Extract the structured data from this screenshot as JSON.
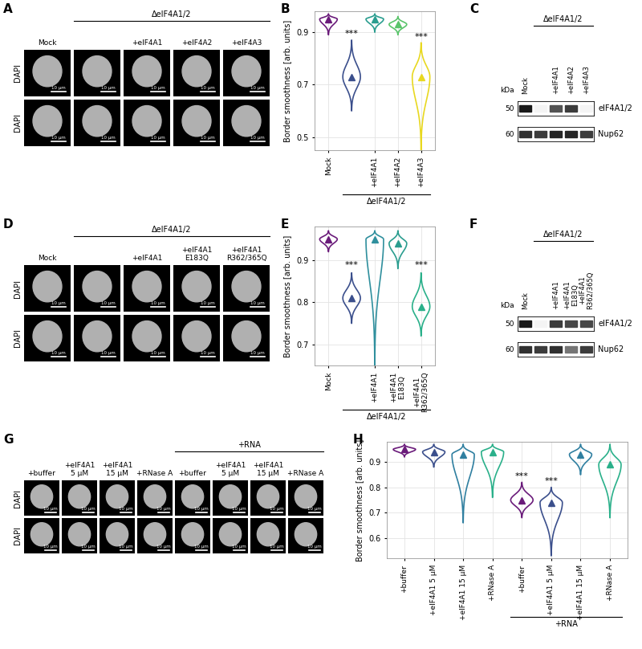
{
  "chart_data": [
    {
      "panel": "B",
      "type": "violin",
      "categories": [
        "Mock",
        null,
        "+eIF4A1",
        "+eIF4A2",
        "+eIF4A3"
      ],
      "values": [
        0.95,
        0.73,
        0.95,
        0.93,
        0.73
      ],
      "ranges": [
        [
          0.89,
          0.97
        ],
        [
          0.6,
          0.87
        ],
        [
          0.9,
          0.97
        ],
        [
          0.89,
          0.96
        ],
        [
          0.45,
          0.86
        ]
      ],
      "significance": [
        null,
        "***",
        null,
        null,
        "***"
      ],
      "colors": [
        "#6a1b7a",
        "#3b4f8c",
        "#2a9d8f",
        "#59c46a",
        "#e8d820"
      ],
      "ylabel": "Border smoothness [arb. units]",
      "ylim": [
        0.45,
        0.98
      ],
      "yticks": [
        0.5,
        0.7,
        0.9
      ],
      "group": {
        "text": "ΔeIF4A1/2",
        "from": 1,
        "to": 4
      },
      "marker": "triangle",
      "grid": true
    },
    {
      "panel": "E",
      "type": "violin",
      "categories": [
        "Mock",
        null,
        "+eIF4A1",
        "+eIF4A1\nE183Q",
        "+eIF4A1\nR362/365Q"
      ],
      "values": [
        0.95,
        0.81,
        0.95,
        0.94,
        0.79
      ],
      "ranges": [
        [
          0.92,
          0.97
        ],
        [
          0.75,
          0.87
        ],
        [
          0.65,
          0.97
        ],
        [
          0.88,
          0.97
        ],
        [
          0.72,
          0.87
        ]
      ],
      "significance": [
        null,
        "***",
        null,
        null,
        "***"
      ],
      "colors": [
        "#6a1b7a",
        "#3b4f8c",
        "#2f8f9d",
        "#2a9d8f",
        "#2ab08a"
      ],
      "ylabel": "Border smoothness [arb. units]",
      "ylim": [
        0.65,
        0.98
      ],
      "yticks": [
        0.7,
        0.8,
        0.9
      ],
      "group": {
        "text": "ΔeIF4A1/2",
        "from": 1,
        "to": 4
      },
      "marker": "triangle",
      "grid": true
    },
    {
      "panel": "H",
      "type": "violin",
      "categories": [
        "+buffer",
        "+eIF4A1 5 µM",
        "+eIF4A1 15 µM",
        "+RNase A",
        "+buffer",
        "+eIF4A1 5 µM",
        "+eIF4A1 15 µM",
        "+RNase A"
      ],
      "values": [
        0.95,
        0.94,
        0.93,
        0.94,
        0.75,
        0.74,
        0.93,
        0.89
      ],
      "ranges": [
        [
          0.92,
          0.97
        ],
        [
          0.88,
          0.97
        ],
        [
          0.66,
          0.97
        ],
        [
          0.76,
          0.97
        ],
        [
          0.68,
          0.82
        ],
        [
          0.53,
          0.8
        ],
        [
          0.85,
          0.97
        ],
        [
          0.68,
          0.97
        ]
      ],
      "significance": [
        null,
        null,
        null,
        null,
        "***",
        "***",
        null,
        null
      ],
      "colors": [
        "#6a1b7a",
        "#3b4f8c",
        "#2f7fa0",
        "#2ab08a",
        "#6a1b7a",
        "#3b4f8c",
        "#2f7fa0",
        "#2ab08a"
      ],
      "ylabel": "Border smoothness [arb. units]",
      "ylim": [
        0.52,
        0.98
      ],
      "yticks": [
        0.6,
        0.7,
        0.8,
        0.9
      ],
      "group": {
        "text": "+RNA",
        "from": 4,
        "to": 7
      },
      "marker": "triangle",
      "grid": true
    }
  ],
  "panels": {
    "images": [
      {
        "panel": "A",
        "columns": [
          "Mock",
          null,
          "+eIF4A1",
          "+eIF4A2",
          "+eIF4A3"
        ],
        "group": {
          "text": "ΔeIF4A1/2",
          "from": 1,
          "to": 4
        },
        "row_labels": [
          "DAPI",
          "DAPI"
        ],
        "scale_bar": "10 µm"
      },
      {
        "panel": "D",
        "columns": [
          "Mock",
          null,
          "+eIF4A1",
          "+eIF4A1\nE183Q",
          "+eIF4A1\nR362/365Q"
        ],
        "group": {
          "text": "ΔeIF4A1/2",
          "from": 1,
          "to": 4
        },
        "row_labels": [
          "DAPI",
          "DAPI"
        ],
        "scale_bar": "10 µm"
      },
      {
        "panel": "G",
        "columns": [
          "+buffer",
          "+eIF4A1\n5 µM",
          "+eIF4A1\n15 µM",
          "+RNase A",
          "+buffer",
          "+eIF4A1\n5 µM",
          "+eIF4A1\n15 µM",
          "+RNase A"
        ],
        "group": {
          "text": "+RNA",
          "from": 4,
          "to": 7
        },
        "row_labels": [
          "DAPI",
          "DAPI"
        ],
        "scale_bar": "10 µm"
      }
    ],
    "blots": [
      {
        "panel": "C",
        "lanes": [
          "Mock",
          null,
          "+eIF4A1",
          "+eIF4A2",
          "+eIF4A3"
        ],
        "group": {
          "text": "ΔeIF4A1/2",
          "from": 1,
          "to": 4
        },
        "unit": "kDa",
        "rows": [
          {
            "name": "eIF4A1/2",
            "mw": 50,
            "bands": [
              1.0,
              0.05,
              0.75,
              0.85,
              0.05
            ]
          },
          {
            "name": "Nup62",
            "mw": 60,
            "bands": [
              0.9,
              0.85,
              0.95,
              0.95,
              0.85
            ]
          }
        ]
      },
      {
        "panel": "F",
        "lanes": [
          "Mock",
          null,
          "+eIF4A1",
          "+eIF4A1\nE183Q",
          "+eIF4A1\nR362/365Q"
        ],
        "group": {
          "text": "ΔeIF4A1/2",
          "from": 1,
          "to": 4
        },
        "unit": "kDa",
        "rows": [
          {
            "name": "eIF4A1/2",
            "mw": 50,
            "bands": [
              1.0,
              0.05,
              0.85,
              0.8,
              0.8
            ]
          },
          {
            "name": "Nup62",
            "mw": 60,
            "bands": [
              0.9,
              0.85,
              0.9,
              0.6,
              0.85
            ]
          }
        ]
      }
    ]
  }
}
